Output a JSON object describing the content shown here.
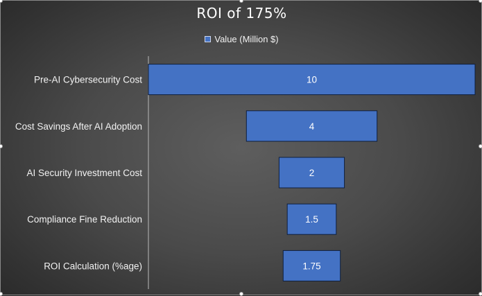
{
  "chart_data": {
    "type": "bar",
    "orientation": "horizontal-funnel",
    "title": "ROI of 175%",
    "categories": [
      "Pre-AI Cybersecurity Cost",
      "Cost Savings After AI Adoption",
      "AI Security Investment Cost",
      "Compliance Fine Reduction",
      "ROI Calculation (%age)"
    ],
    "series": [
      {
        "name": "Value (Million $)",
        "values": [
          10,
          4,
          2,
          1.5,
          1.75
        ]
      }
    ],
    "data_labels": [
      "10",
      "4",
      "2",
      "1.5",
      "1.75"
    ],
    "xlim": [
      0,
      10
    ],
    "grid": false,
    "legend_position": "top",
    "colors": {
      "bar_fill": "#4472c4",
      "bar_border": "#0e1e3c",
      "text": "#ffffff",
      "axis": "#a6a6a6"
    }
  }
}
